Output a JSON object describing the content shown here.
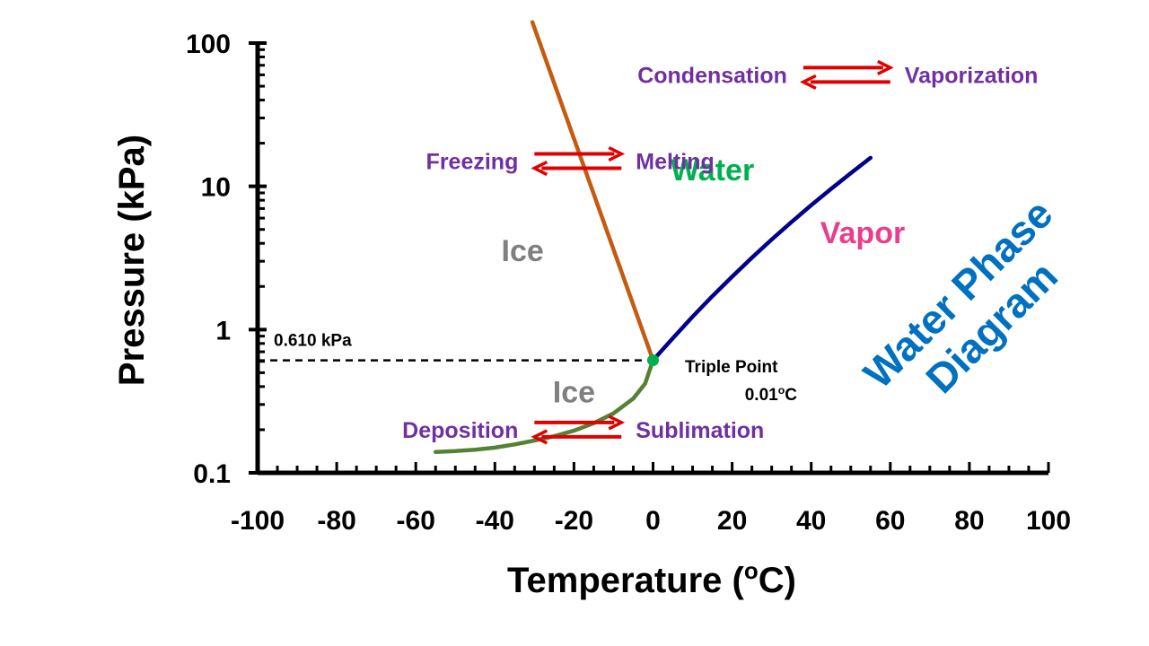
{
  "chart_data": {
    "type": "line",
    "title": "Water Phase Diagram",
    "xlabel": "Temperature (oC)",
    "ylabel": "Pressure (kPa)",
    "xlim": [
      -100,
      100
    ],
    "ylim": [
      0.1,
      100
    ],
    "yscale": "log",
    "grid": false,
    "x_ticks": [
      "-100",
      "-80",
      "-60",
      "-40",
      "-20",
      "0",
      "20",
      "40",
      "60",
      "80",
      "100"
    ],
    "x_tick_values": [
      -100,
      -80,
      -60,
      -40,
      -20,
      0,
      20,
      40,
      60,
      80,
      100
    ],
    "y_ticks": [
      "0.1",
      "1",
      "10",
      "100"
    ],
    "y_tick_values": [
      0.1,
      1,
      10,
      100
    ],
    "series": [
      {
        "key": "melting",
        "color": "#c55a11",
        "x": [
          0.01,
          -30.5
        ],
        "y": [
          0.611,
          140
        ]
      },
      {
        "key": "vaporization",
        "color": "#00008b",
        "x": [
          0.01,
          5,
          10,
          15,
          20,
          25,
          30,
          35,
          40,
          45,
          50,
          55
        ],
        "y": [
          0.611,
          0.87,
          1.23,
          1.71,
          2.34,
          3.17,
          4.25,
          5.63,
          7.38,
          9.59,
          12.35,
          15.8
        ]
      },
      {
        "key": "sublimation",
        "color": "#548235",
        "x": [
          -55,
          -50,
          -45,
          -40,
          -35,
          -30,
          -25,
          -20,
          -15,
          -10,
          -5,
          -2,
          0.01
        ],
        "y": [
          0.14,
          0.142,
          0.145,
          0.15,
          0.158,
          0.168,
          0.18,
          0.197,
          0.222,
          0.26,
          0.33,
          0.42,
          0.611
        ]
      }
    ],
    "triple_point": {
      "x": 0.01,
      "y": 0.611,
      "color": "#00b050",
      "label": "Triple Point",
      "temp_label": "0.01oC"
    },
    "reference_line": {
      "y": 0.61,
      "label": "0.610 kPa"
    },
    "region_labels": [
      {
        "key": "ice_upper",
        "text": "Ice",
        "color": "#7f7f7f",
        "x": -33,
        "y": 3
      },
      {
        "key": "water",
        "text": "Water",
        "color": "#00b050",
        "x": 15,
        "y": 11
      },
      {
        "key": "vapor",
        "text": "Vapor",
        "color": "#e83e8c",
        "x": 53,
        "y": 4
      },
      {
        "key": "ice_lower",
        "text": "Ice",
        "color": "#7f7f7f",
        "x": -20,
        "y": 0.31
      }
    ],
    "process_pairs": [
      {
        "key": "solid-liquid",
        "left": "Freezing",
        "right": "Melting",
        "arrow_x": [
          -30,
          -8
        ],
        "y": 15
      },
      {
        "key": "liquid-gas",
        "left": "Condensation",
        "right": "Vaporization",
        "arrow_x": [
          38,
          60
        ],
        "y": 60
      },
      {
        "key": "solid-gas",
        "left": "Deposition",
        "right": "Sublimation",
        "arrow_x": [
          -30,
          -8
        ],
        "y": 0.2
      }
    ],
    "arrow_color": "#e00000",
    "title_color": "#0070c0"
  }
}
